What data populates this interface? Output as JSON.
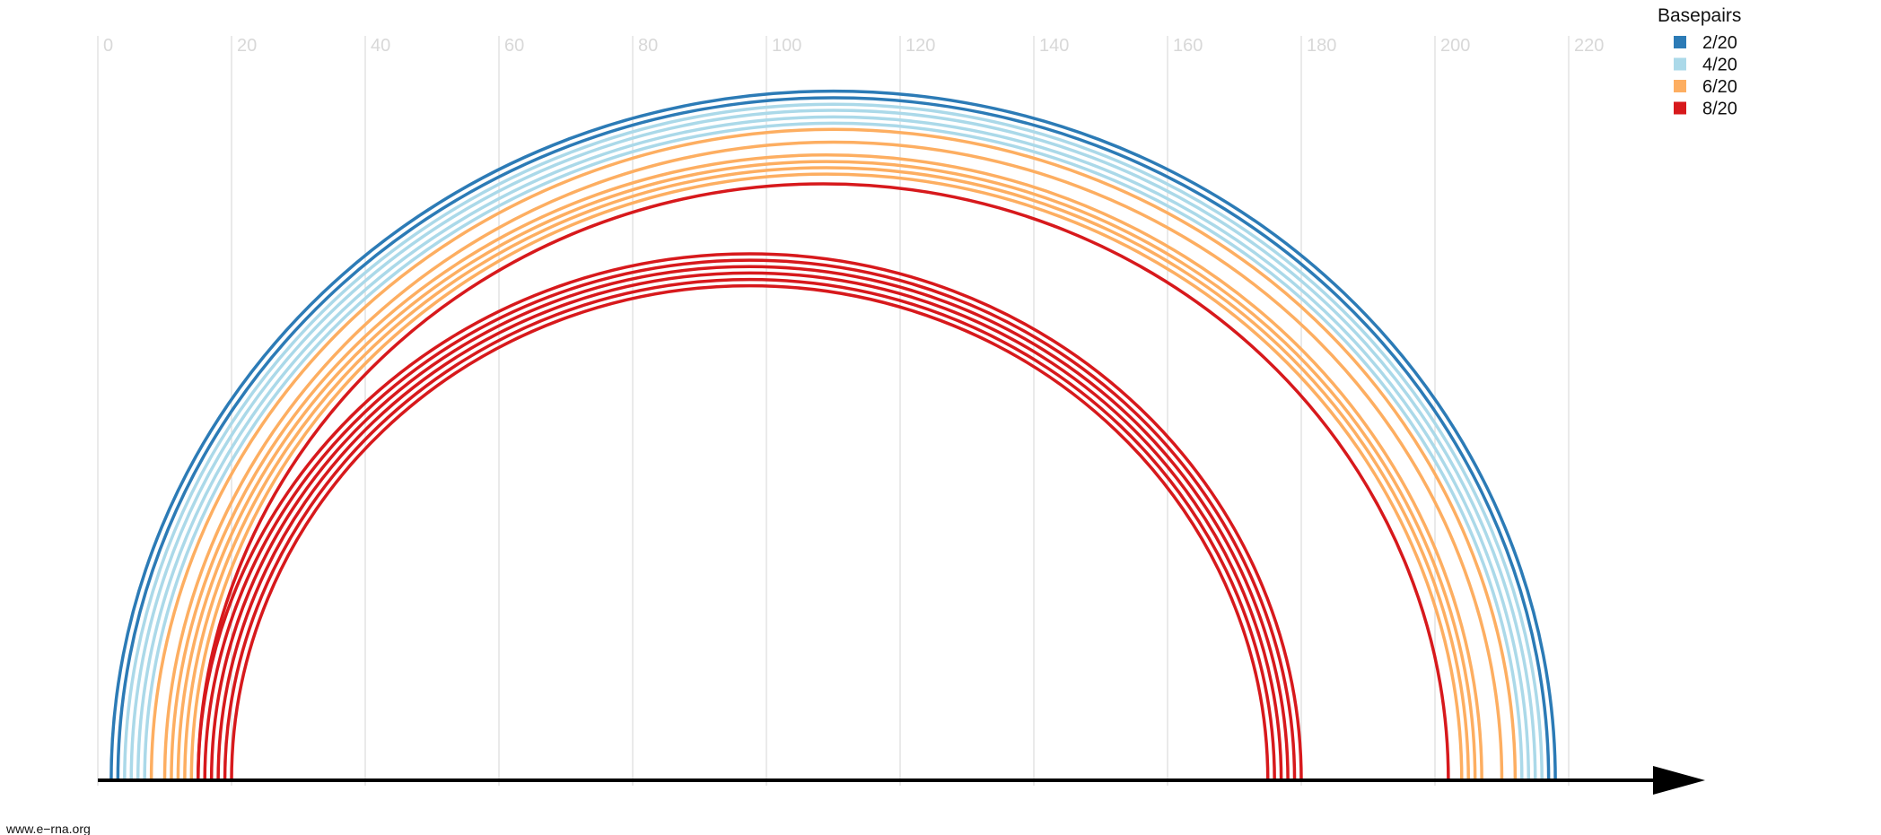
{
  "axis": {
    "min": 0,
    "max": 220,
    "ticks": [
      "0",
      "20",
      "40",
      "60",
      "80",
      "100",
      "120",
      "140",
      "160",
      "180",
      "200",
      "220"
    ],
    "grid": true,
    "grid_color": "#dddddd",
    "tick_label_color": "#d8d8d8",
    "arrow_color": "#000000"
  },
  "legend": {
    "title": "Basepairs",
    "placement": "top-right",
    "items": [
      {
        "label": "2/20",
        "color": "#2c7bb6"
      },
      {
        "label": "4/20",
        "color": "#abd9e9"
      },
      {
        "label": "6/20",
        "color": "#fdae61"
      },
      {
        "label": "8/20",
        "color": "#d7191c"
      }
    ]
  },
  "footer": {
    "text": "www.e−rna.org"
  },
  "arc_groups": [
    {
      "color": "#2c7bb6",
      "pairs": [
        [
          2,
          218
        ],
        [
          3,
          217
        ]
      ]
    },
    {
      "color": "#abd9e9",
      "pairs": [
        [
          4,
          216
        ],
        [
          5,
          215
        ],
        [
          6,
          214
        ],
        [
          7,
          213
        ]
      ]
    },
    {
      "color": "#fdae61",
      "pairs": [
        [
          8,
          212
        ],
        [
          10,
          210
        ]
      ]
    },
    {
      "color": "#fdae61",
      "pairs": [
        [
          11,
          207
        ],
        [
          12,
          206
        ],
        [
          13,
          205
        ],
        [
          14,
          204
        ]
      ]
    },
    {
      "color": "#d7191c",
      "pairs": [
        [
          15,
          202
        ]
      ]
    },
    {
      "color": "#d7191c",
      "pairs": [
        [
          15,
          180
        ],
        [
          16,
          179
        ],
        [
          17,
          178
        ],
        [
          18,
          177
        ],
        [
          19,
          176
        ],
        [
          20,
          175
        ]
      ]
    }
  ]
}
